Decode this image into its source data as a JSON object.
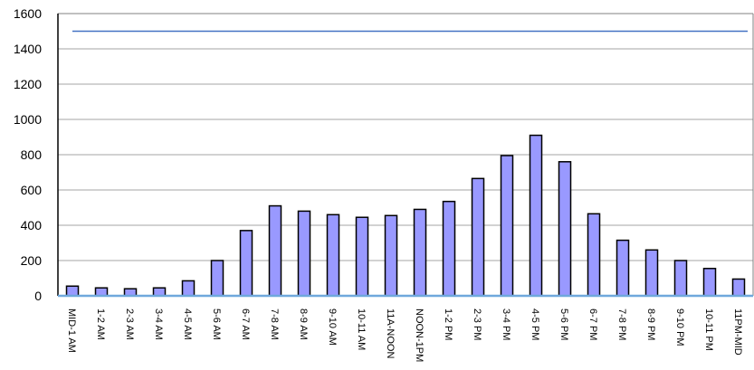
{
  "chart_data": {
    "type": "bar",
    "title": "",
    "xlabel": "",
    "ylabel": "",
    "ylim": [
      0,
      1600
    ],
    "yticks": [
      0,
      200,
      400,
      600,
      800,
      1000,
      1200,
      1400,
      1600
    ],
    "categories": [
      "MID-1 AM",
      "1-2 AM",
      "2-3 AM",
      "3-4 AM",
      "4-5 AM",
      "5-6 AM",
      "6-7 AM",
      "7-8 AM",
      "8-9 AM",
      "9-10 AM",
      "10-11 AM",
      "11A-NOON",
      "NOON-1PM",
      "1-2 PM",
      "2-3 PM",
      "3-4 PM",
      "4-5 PM",
      "5-6 PM",
      "6-7 PM",
      "7-8 PM",
      "8-9 PM",
      "9-10 PM",
      "10-11 PM",
      "11PM-MID"
    ],
    "series": [
      {
        "values": [
          55,
          45,
          40,
          45,
          85,
          200,
          370,
          510,
          480,
          460,
          445,
          455,
          490,
          535,
          665,
          795,
          910,
          760,
          465,
          315,
          260,
          200,
          155,
          95
        ],
        "color": "#9999ff"
      }
    ],
    "reference_line": {
      "value": 1500,
      "color": "#4472c4"
    },
    "grid": true,
    "legend": "none"
  }
}
